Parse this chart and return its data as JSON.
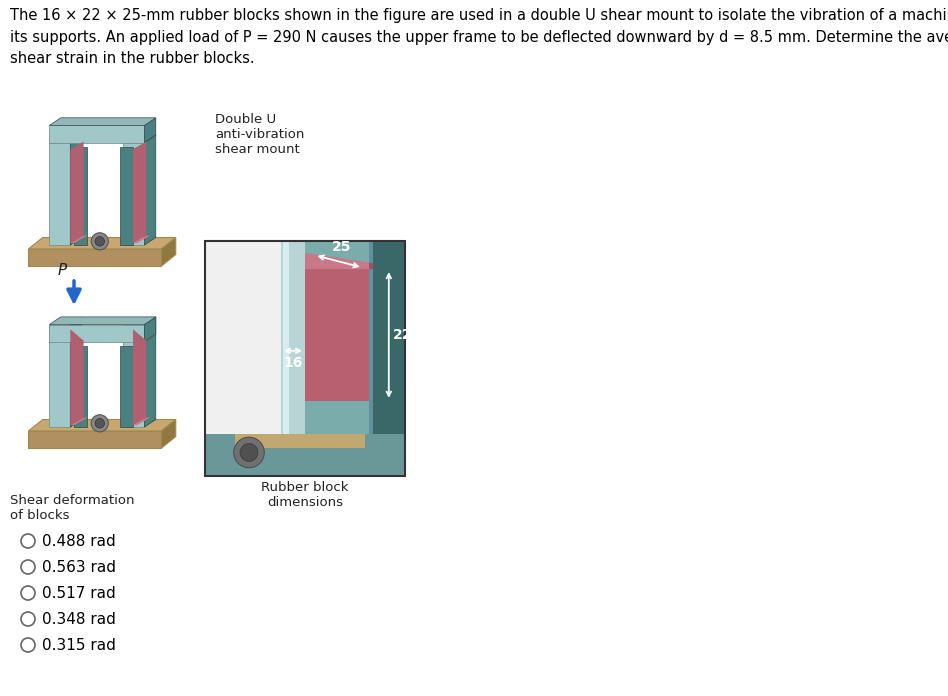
{
  "title_text": "The 16 × 22 × 25-mm rubber blocks shown in the figure are used in a double U shear mount to isolate the vibration of a machine from\nits supports. An applied load of P = 290 N causes the upper frame to be deflected downward by d = 8.5 mm. Determine the average\nshear strain in the rubber blocks.",
  "options": [
    "0.488 rad",
    "0.563 rad",
    "0.517 rad",
    "0.348 rad",
    "0.315 rad"
  ],
  "label_double_u": "Double U\nanti-vibration\nshear mount",
  "label_rubber": "Rubber block\ndimensions",
  "label_shear": "Shear deformation\nof blocks",
  "label_P": "P",
  "dim_16": "16",
  "dim_22": "22",
  "dim_25": "25",
  "bg_color": "#ffffff",
  "text_color": "#000000",
  "title_fontsize": 10.5,
  "option_fontsize": 11,
  "label_fontsize": 10,
  "frame_color": "#4a8080",
  "frame_light": "#a0c8c8",
  "rubber_color": "#b06070",
  "base_color": "#c8a870",
  "base_edge": "#a08850",
  "bolt_color": "#606060",
  "teal_bg": "#7aacac",
  "teal_dark": "#3a6868",
  "teal_mid": "#6a9898"
}
